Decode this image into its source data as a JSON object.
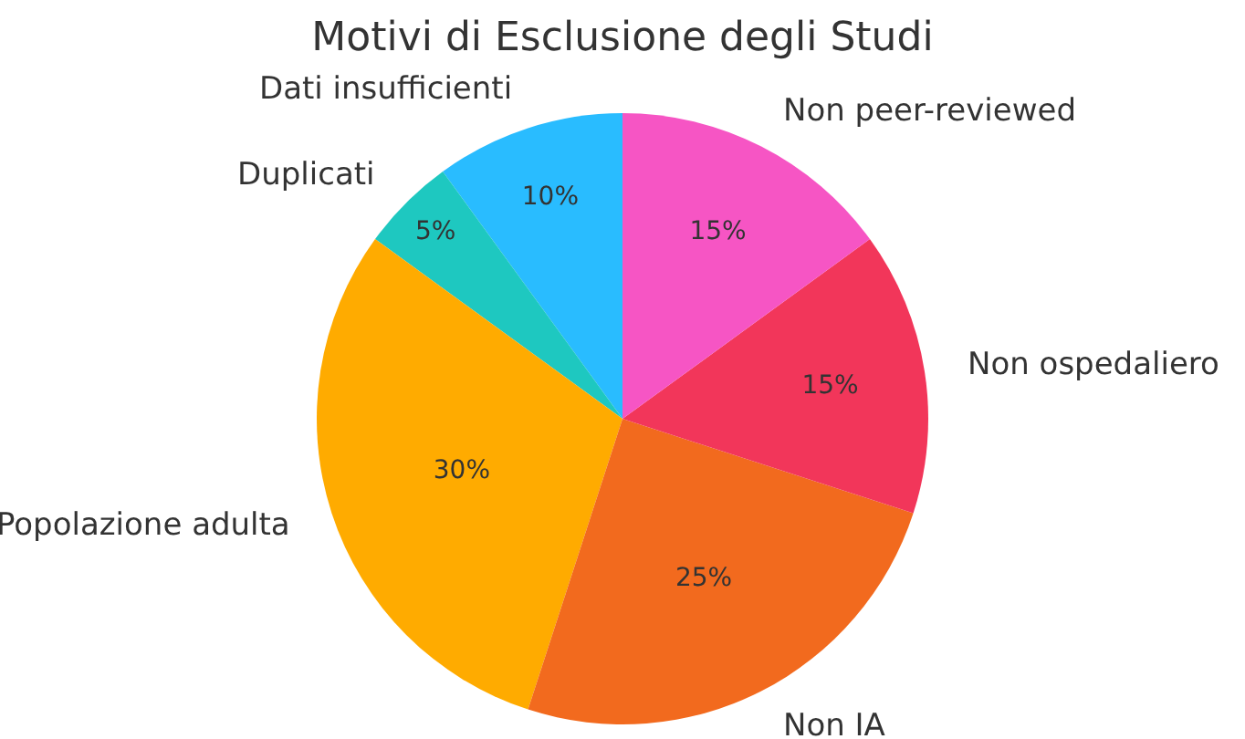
{
  "chart_data": {
    "type": "pie",
    "title": "Motivi di Esclusione degli Studi",
    "categories": [
      "Dati insufficienti",
      "Duplicati",
      "Popolazione adulta",
      "Non IA",
      "Non ospedaliero",
      "Non peer-reviewed"
    ],
    "values": [
      10,
      5,
      30,
      25,
      15,
      15
    ],
    "value_labels": [
      "10%",
      "5%",
      "30%",
      "25%",
      "15%",
      "15%"
    ],
    "colors": [
      "#29bcff",
      "#1ec8c0",
      "#ffab00",
      "#f26a1e",
      "#f2365a",
      "#f655c4"
    ],
    "legend": false
  }
}
